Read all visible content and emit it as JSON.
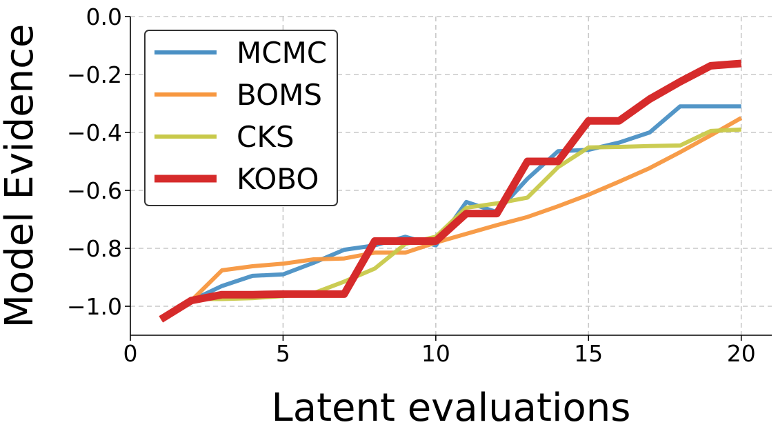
{
  "chart_data": {
    "type": "line",
    "title": "",
    "xlabel": "Latent evaluations",
    "ylabel": "Model Evidence",
    "xlim": [
      0,
      21
    ],
    "ylim": [
      -1.1,
      0.0
    ],
    "xticks": [
      0,
      5,
      10,
      15,
      20
    ],
    "xtick_labels": [
      "0",
      "5",
      "10",
      "15",
      "20"
    ],
    "yticks": [
      0.0,
      -0.2,
      -0.4,
      -0.6,
      -0.8,
      -1.0
    ],
    "ytick_labels": [
      "0.0",
      "−0.2",
      "−0.4",
      "−0.6",
      "−0.8",
      "−1.0"
    ],
    "grid": true,
    "legend_position": "top-left",
    "x": [
      1,
      2,
      3,
      4,
      5,
      6,
      7,
      8,
      9,
      10,
      11,
      12,
      13,
      14,
      15,
      16,
      17,
      18,
      19,
      20
    ],
    "series": [
      {
        "name": "MCMC",
        "color": "#4a90c4",
        "width": 6,
        "values": [
          -1.045,
          -0.98,
          -0.93,
          -0.895,
          -0.89,
          -0.85,
          -0.805,
          -0.79,
          -0.76,
          -0.79,
          -0.64,
          -0.675,
          -0.56,
          -0.465,
          -0.46,
          -0.435,
          -0.4,
          -0.31,
          -0.31,
          -0.31
        ]
      },
      {
        "name": "BOMS",
        "color": "#f7973f",
        "width": 6,
        "values": [
          -1.045,
          -0.98,
          -0.876,
          -0.862,
          -0.853,
          -0.838,
          -0.835,
          -0.815,
          -0.815,
          -0.78,
          -0.75,
          -0.72,
          -0.692,
          -0.655,
          -0.615,
          -0.57,
          -0.523,
          -0.468,
          -0.41,
          -0.35
        ]
      },
      {
        "name": "CKS",
        "color": "#c8c94a",
        "width": 6,
        "values": [
          -1.045,
          -0.975,
          -0.975,
          -0.972,
          -0.965,
          -0.955,
          -0.915,
          -0.87,
          -0.785,
          -0.76,
          -0.66,
          -0.645,
          -0.625,
          -0.52,
          -0.452,
          -0.45,
          -0.447,
          -0.445,
          -0.395,
          -0.39
        ]
      },
      {
        "name": "KOBO",
        "color": "#d62b2b",
        "width": 11,
        "values": [
          -1.045,
          -0.98,
          -0.96,
          -0.96,
          -0.958,
          -0.958,
          -0.958,
          -0.775,
          -0.775,
          -0.775,
          -0.68,
          -0.68,
          -0.5,
          -0.5,
          -0.36,
          -0.36,
          -0.285,
          -0.225,
          -0.17,
          -0.162
        ]
      }
    ]
  }
}
